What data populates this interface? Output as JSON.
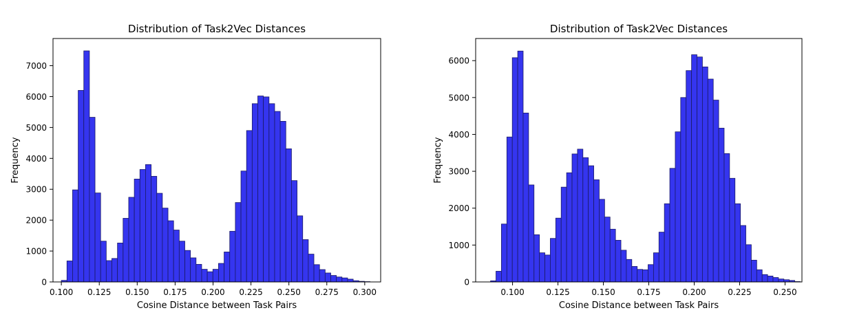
{
  "colors": {
    "bar_fill": "#3535ef",
    "bar_edge": "#1a1a66",
    "axes": "#000000"
  },
  "chart_data": [
    {
      "type": "bar",
      "title": "Distribution of Task2Vec Distances",
      "xlabel": "Cosine Distance between Task Pairs",
      "ylabel": "Frequency",
      "xlim": [
        0.0945,
        0.3105
      ],
      "ylim": [
        0,
        7880
      ],
      "xticks": [
        0.1,
        0.125,
        0.15,
        0.175,
        0.2,
        0.225,
        0.25,
        0.275,
        0.3
      ],
      "xtick_labels": [
        "0.100",
        "0.125",
        "0.150",
        "0.175",
        "0.200",
        "0.225",
        "0.250",
        "0.275",
        "0.300"
      ],
      "yticks": [
        0,
        1000,
        2000,
        3000,
        4000,
        5000,
        6000,
        7000
      ],
      "ytick_labels": [
        "0",
        "1000",
        "2000",
        "3000",
        "4000",
        "5000",
        "6000",
        "7000"
      ],
      "bin_start": 0.1,
      "bin_width": 0.0037,
      "values": [
        50,
        680,
        2980,
        6200,
        7480,
        5330,
        2880,
        1320,
        690,
        760,
        1260,
        2060,
        2740,
        3330,
        3640,
        3800,
        3420,
        2870,
        2390,
        1980,
        1680,
        1320,
        1020,
        780,
        570,
        410,
        330,
        410,
        600,
        970,
        1640,
        2570,
        3590,
        4900,
        5770,
        6020,
        5990,
        5770,
        5520,
        5200,
        4310,
        3280,
        2140,
        1370,
        900,
        560,
        400,
        290,
        210,
        160,
        130,
        90,
        40,
        20,
        10
      ]
    },
    {
      "type": "bar",
      "title": "Distribution of Task2Vec Distances",
      "xlabel": "Cosine Distance between Task Pairs",
      "ylabel": "Frequency",
      "xlim": [
        0.0797,
        0.2593
      ],
      "ylim": [
        0,
        6600
      ],
      "xticks": [
        0.1,
        0.125,
        0.15,
        0.175,
        0.2,
        0.225,
        0.25
      ],
      "xtick_labels": [
        "0.100",
        "0.125",
        "0.150",
        "0.175",
        "0.200",
        "0.225",
        "0.250"
      ],
      "yticks": [
        0,
        1000,
        2000,
        3000,
        4000,
        5000,
        6000
      ],
      "ytick_labels": [
        "0",
        "1000",
        "2000",
        "3000",
        "4000",
        "5000",
        "6000"
      ],
      "bin_start": 0.0879,
      "bin_width": 0.00299,
      "values": [
        30,
        290,
        1570,
        3930,
        6080,
        6260,
        4580,
        2630,
        1280,
        790,
        730,
        1180,
        1730,
        2570,
        2960,
        3470,
        3600,
        3370,
        3150,
        2770,
        2240,
        1760,
        1430,
        1130,
        860,
        610,
        420,
        340,
        330,
        470,
        790,
        1350,
        2120,
        3080,
        4070,
        5000,
        5730,
        6160,
        6100,
        5830,
        5500,
        4930,
        4170,
        3480,
        2810,
        2120,
        1530,
        1010,
        590,
        330,
        200,
        160,
        120,
        80,
        60,
        40,
        10
      ]
    }
  ]
}
